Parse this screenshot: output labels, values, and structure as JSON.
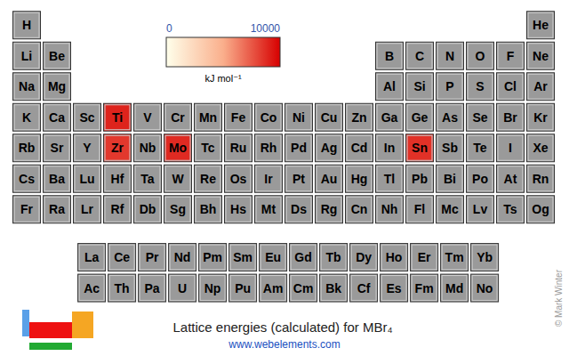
{
  "chart_data": {
    "type": "heatmap",
    "title": "Lattice energies (calculated) for MBr₄",
    "subtitle": "www.webelements.com",
    "credit": "© Mark Winter",
    "tick_labels": false,
    "rows": [
      [
        "H",
        null,
        null,
        null,
        null,
        null,
        null,
        null,
        null,
        null,
        null,
        null,
        null,
        null,
        null,
        null,
        null,
        "He"
      ],
      [
        "Li",
        "Be",
        null,
        null,
        null,
        null,
        null,
        null,
        null,
        null,
        null,
        null,
        "B",
        "C",
        "N",
        "O",
        "F",
        "Ne"
      ],
      [
        "Na",
        "Mg",
        null,
        null,
        null,
        null,
        null,
        null,
        null,
        null,
        null,
        null,
        "Al",
        "Si",
        "P",
        "S",
        "Cl",
        "Ar"
      ],
      [
        "K",
        "Ca",
        "Sc",
        "Ti",
        "V",
        "Cr",
        "Mn",
        "Fe",
        "Co",
        "Ni",
        "Cu",
        "Zn",
        "Ga",
        "Ge",
        "As",
        "Se",
        "Br",
        "Kr"
      ],
      [
        "Rb",
        "Sr",
        "Y",
        "Zr",
        "Nb",
        "Mo",
        "Tc",
        "Ru",
        "Rh",
        "Pd",
        "Ag",
        "Cd",
        "In",
        "Sn",
        "Sb",
        "Te",
        "I",
        "Xe"
      ],
      [
        "Cs",
        "Ba",
        "Lu",
        "Hf",
        "Ta",
        "W",
        "Re",
        "Os",
        "Ir",
        "Pt",
        "Au",
        "Hg",
        "Tl",
        "Pb",
        "Bi",
        "Po",
        "At",
        "Rn"
      ],
      [
        "Fr",
        "Ra",
        "Lr",
        "Rf",
        "Db",
        "Sg",
        "Bh",
        "Hs",
        "Mt",
        "Ds",
        "Rg",
        "Cn",
        "Nh",
        "Fl",
        "Mc",
        "Lv",
        "Ts",
        "Og"
      ]
    ],
    "f_block": [
      [
        "La",
        "Ce",
        "Pr",
        "Nd",
        "Pm",
        "Sm",
        "Eu",
        "Gd",
        "Tb",
        "Dy",
        "Ho",
        "Er",
        "Tm",
        "Yb"
      ],
      [
        "Ac",
        "Th",
        "Pa",
        "U",
        "Np",
        "Pu",
        "Am",
        "Cm",
        "Bk",
        "Cf",
        "Es",
        "Fm",
        "Md",
        "No"
      ]
    ],
    "values": {
      "Ti": 9000,
      "Zr": 8400,
      "Mo": 8800,
      "Sn": 8600
    },
    "colorbar": {
      "range": [
        0,
        10000
      ],
      "ticks": [
        0,
        10000
      ],
      "label": "kJ mol⁻¹"
    }
  }
}
